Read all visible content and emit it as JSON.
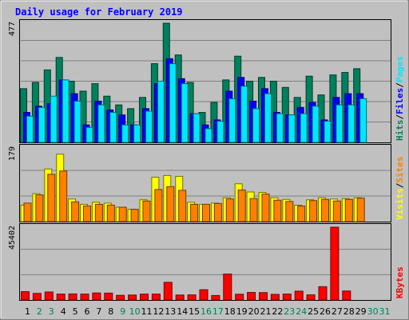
{
  "chart_data": [
    {
      "type": "bar",
      "title": "Daily usage for February 2019",
      "panel": "hits-files-pages",
      "ymax_label": "477",
      "ylim": [
        0,
        477
      ],
      "grid": true,
      "categories": [
        "1",
        "2",
        "3",
        "4",
        "5",
        "6",
        "7",
        "8",
        "9",
        "10",
        "11",
        "12",
        "13",
        "14",
        "15",
        "16",
        "17",
        "18",
        "19",
        "20",
        "21",
        "22",
        "23",
        "24",
        "25",
        "26",
        "27",
        "28",
        "29",
        "30",
        "31"
      ],
      "weekend_days": [
        "2",
        "3",
        "9",
        "10",
        "16",
        "17",
        "23",
        "24",
        "30",
        "31"
      ],
      "series": [
        {
          "name": "Hits",
          "color": "#00805c",
          "values": [
            215,
            240,
            290,
            340,
            245,
            205,
            235,
            185,
            150,
            135,
            180,
            315,
            477,
            350,
            240,
            120,
            160,
            250,
            345,
            245,
            260,
            245,
            220,
            180,
            265,
            190,
            270,
            280,
            295,
            0,
            0
          ]
        },
        {
          "name": "Files",
          "color": "#0000ff",
          "values": [
            120,
            145,
            155,
            250,
            195,
            70,
            165,
            130,
            110,
            70,
            135,
            235,
            335,
            255,
            115,
            70,
            90,
            205,
            260,
            165,
            215,
            120,
            110,
            140,
            160,
            90,
            180,
            195,
            195,
            0,
            0
          ]
        },
        {
          "name": "Pages",
          "color": "#00e8ff",
          "values": [
            105,
            140,
            185,
            250,
            165,
            60,
            150,
            120,
            70,
            70,
            125,
            245,
            315,
            235,
            115,
            55,
            85,
            175,
            225,
            135,
            195,
            115,
            110,
            115,
            145,
            85,
            150,
            150,
            175,
            0,
            0
          ]
        }
      ],
      "legend": [
        {
          "text": "Hits",
          "color": "#00805c"
        },
        {
          "text": "/",
          "color": "#000000"
        },
        {
          "text": "Files",
          "color": "#0000ff"
        },
        {
          "text": "/",
          "color": "#000000"
        },
        {
          "text": "Pages",
          "color": "#00e8ff"
        }
      ]
    },
    {
      "type": "bar",
      "panel": "visits-sites",
      "ymax_label": "179",
      "ylim": [
        0,
        179
      ],
      "grid": true,
      "categories": [
        "1",
        "2",
        "3",
        "4",
        "5",
        "6",
        "7",
        "8",
        "9",
        "10",
        "11",
        "12",
        "13",
        "14",
        "15",
        "16",
        "17",
        "18",
        "19",
        "20",
        "21",
        "22",
        "23",
        "24",
        "25",
        "26",
        "27",
        "28",
        "29",
        "30",
        "31"
      ],
      "series": [
        {
          "name": "Visits",
          "color": "#ffff00",
          "values": [
            40,
            68,
            128,
            164,
            55,
            42,
            47,
            45,
            35,
            30,
            53,
            108,
            112,
            110,
            47,
            42,
            45,
            58,
            92,
            72,
            71,
            58,
            54,
            40,
            53,
            58,
            55,
            56,
            58,
            0,
            0
          ]
        },
        {
          "name": "Sites",
          "color": "#ff8000",
          "values": [
            45,
            65,
            115,
            123,
            48,
            38,
            42,
            40,
            35,
            30,
            50,
            78,
            85,
            76,
            42,
            42,
            44,
            55,
            77,
            56,
            67,
            52,
            49,
            38,
            51,
            54,
            50,
            54,
            57,
            0,
            0
          ]
        }
      ],
      "legend": [
        {
          "text": "Visits",
          "color": "#ffff00"
        },
        {
          "text": "/",
          "color": "#000000"
        },
        {
          "text": "Sites",
          "color": "#ff8000"
        }
      ]
    },
    {
      "type": "bar",
      "panel": "kbytes",
      "ymax_label": "45402",
      "ylim": [
        0,
        45402
      ],
      "grid": true,
      "categories": [
        "1",
        "2",
        "3",
        "4",
        "5",
        "6",
        "7",
        "8",
        "9",
        "10",
        "11",
        "12",
        "13",
        "14",
        "15",
        "16",
        "17",
        "18",
        "19",
        "20",
        "21",
        "22",
        "23",
        "24",
        "25",
        "26",
        "27",
        "28",
        "29",
        "30",
        "31"
      ],
      "series": [
        {
          "name": "KBytes",
          "color": "#ff0000",
          "values": [
            5200,
            4100,
            5000,
            3700,
            3800,
            3700,
            4400,
            4300,
            2900,
            3100,
            3700,
            3700,
            11000,
            3100,
            3200,
            6400,
            2800,
            16200,
            3600,
            4700,
            4600,
            3500,
            3700,
            5500,
            3200,
            8300,
            45402,
            5600,
            0,
            0,
            0
          ]
        }
      ],
      "legend": [
        {
          "text": "KBytes",
          "color": "#ff0000"
        }
      ]
    }
  ],
  "colors": {
    "background": "#c0c0c0",
    "panel_border": "#000000",
    "title": "#0000ff",
    "weekday_label": "#000000",
    "weekend_label": "#00805c",
    "grid": "#808080"
  }
}
